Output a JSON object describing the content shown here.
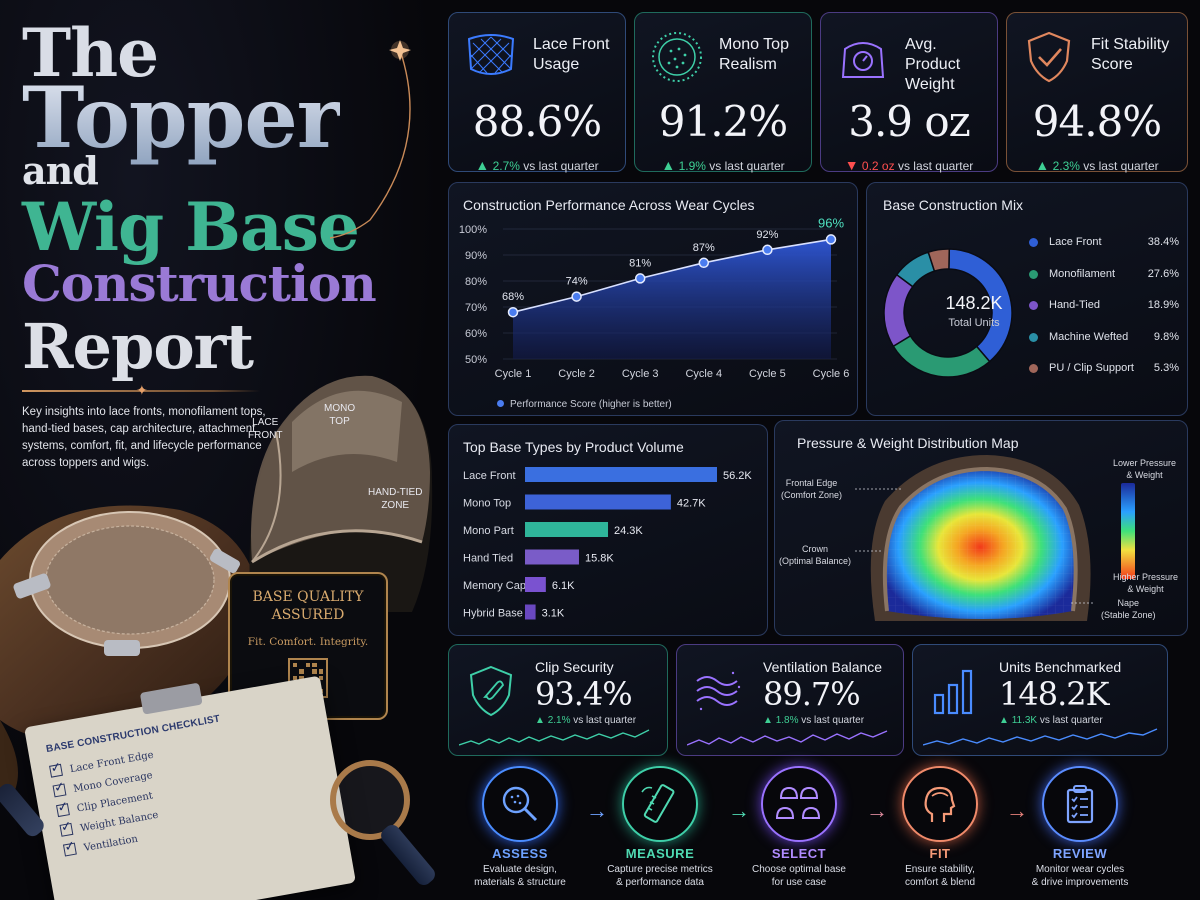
{
  "title": {
    "line1": "The",
    "line2": "Topper",
    "line3": "and",
    "line4": "Wig Base",
    "line5": "Construction",
    "line6": "Report"
  },
  "intro": "Key insights into lace fronts, monofilament tops, hand-tied bases, cap architecture, attachment systems, comfort, fit, and lifecycle performance across toppers and wigs.",
  "cap_labels": {
    "lace_front": "LACE\nFRONT",
    "mono_top": "MONO\nTOP",
    "hand_tied": "HAND-TIED\nZONE"
  },
  "badge": {
    "title": "BASE QUALITY ASSURED",
    "tagline": "Fit. Comfort. Integrity."
  },
  "checklist": {
    "title": "BASE CONSTRUCTION CHECKLIST",
    "items": [
      "Lace Front Edge",
      "Mono Coverage",
      "Clip Placement",
      "Weight Balance",
      "Ventilation"
    ]
  },
  "kpis": [
    {
      "label": "Lace Front Usage",
      "value": "88.6%",
      "delta": "2.7%",
      "direction": "up",
      "note": "vs last quarter",
      "icon": "lace-net-icon",
      "color": "#3b6fd6"
    },
    {
      "label": "Mono Top Realism",
      "value": "91.2%",
      "delta": "1.9%",
      "direction": "up",
      "note": "vs last quarter",
      "icon": "mono-dots-icon",
      "color": "#3ecfa8"
    },
    {
      "label": "Avg. Product Weight",
      "value": "3.9 oz",
      "delta": "0.2 oz",
      "direction": "down",
      "note": "vs last quarter",
      "icon": "scale-icon",
      "color": "#9a72ff"
    },
    {
      "label": "Fit Stability Score",
      "value": "94.8%",
      "delta": "2.3%",
      "direction": "up",
      "note": "vs last quarter",
      "icon": "shield-check-icon",
      "color": "#e0875e"
    }
  ],
  "mini_kpis": [
    {
      "label": "Clip Security",
      "value": "93.4%",
      "delta": "2.1%",
      "note": "vs last quarter",
      "icon": "shield-clip-icon",
      "color": "#3ecfa8"
    },
    {
      "label": "Ventilation Balance",
      "value": "89.7%",
      "delta": "1.8%",
      "note": "vs last quarter",
      "icon": "airflow-icon",
      "color": "#9a72ff"
    },
    {
      "label": "Units Benchmarked",
      "value": "148.2K",
      "delta": "11.3K",
      "note": "vs last quarter",
      "icon": "bar-chart-icon",
      "color": "#4a8cff"
    }
  ],
  "heat_labels": {
    "frontal": "Frontal Edge\n(Comfort Zone)",
    "crown": "Crown\n(Optimal Balance)",
    "nape": "Nape\n(Stable Zone)",
    "low": "Lower Pressure\n& Weight",
    "high": "Higher Pressure\n& Weight"
  },
  "chart_data": [
    {
      "type": "line",
      "title": "Construction Performance Across Wear Cycles",
      "categories": [
        "Cycle 1",
        "Cycle 2",
        "Cycle 3",
        "Cycle 4",
        "Cycle 5",
        "Cycle 6"
      ],
      "series": [
        {
          "name": "Performance Score (higher is better)",
          "values": [
            68,
            74,
            81,
            87,
            92,
            96
          ]
        }
      ],
      "value_labels": [
        "68%",
        "74%",
        "81%",
        "87%",
        "92%",
        "96%"
      ],
      "y_ticks": [
        "50%",
        "60%",
        "70%",
        "80%",
        "90%",
        "100%"
      ],
      "ylim": [
        50,
        100
      ],
      "color": "#4a7cf0"
    },
    {
      "type": "pie",
      "title": "Base Construction Mix",
      "center_value": "148.2K",
      "center_label": "Total Units",
      "slices": [
        {
          "label": "Lace Front",
          "value": 38.4,
          "display": "38.4%",
          "color": "#2f5fd6"
        },
        {
          "label": "Monofilament",
          "value": 27.6,
          "display": "27.6%",
          "color": "#2a9a73"
        },
        {
          "label": "Hand-Tied",
          "value": 18.9,
          "display": "18.9%",
          "color": "#7d55c9"
        },
        {
          "label": "Machine Wefted",
          "value": 9.8,
          "display": "9.8%",
          "color": "#2a8fa6"
        },
        {
          "label": "PU / Clip Support",
          "value": 5.3,
          "display": "5.3%",
          "color": "#a0665a"
        }
      ]
    },
    {
      "type": "bar",
      "orientation": "horizontal",
      "title": "Top Base Types by Product Volume",
      "categories": [
        "Lace Front",
        "Mono Top",
        "Mono Part",
        "Hand Tied",
        "Memory Cap",
        "Hybrid Base"
      ],
      "values": [
        56.2,
        42.7,
        24.3,
        15.8,
        6.1,
        3.1
      ],
      "value_labels": [
        "56.2K",
        "42.7K",
        "24.3K",
        "15.8K",
        "6.1K",
        "3.1K"
      ],
      "colors": [
        "#3a6fe0",
        "#3d63d8",
        "#2fb59a",
        "#7a5cc8",
        "#7a52d0",
        "#6a48c0"
      ]
    },
    {
      "type": "heatmap",
      "title": "Pressure & Weight Distribution Map"
    }
  ],
  "steps": [
    {
      "name": "ASSESS",
      "desc": "Evaluate design,\nmaterials & structure",
      "icon": "magnifier-icon"
    },
    {
      "name": "MEASURE",
      "desc": "Capture precise metrics\n& performance data",
      "icon": "ruler-icon"
    },
    {
      "name": "SELECT",
      "desc": "Choose optimal base\nfor use case",
      "icon": "caps-icon"
    },
    {
      "name": "FIT",
      "desc": "Ensure stability,\ncomfort & blend",
      "icon": "head-icon"
    },
    {
      "name": "REVIEW",
      "desc": "Monitor wear cycles\n& drive improvements",
      "icon": "clipboard-icon"
    }
  ],
  "arrow_glyph": "→"
}
